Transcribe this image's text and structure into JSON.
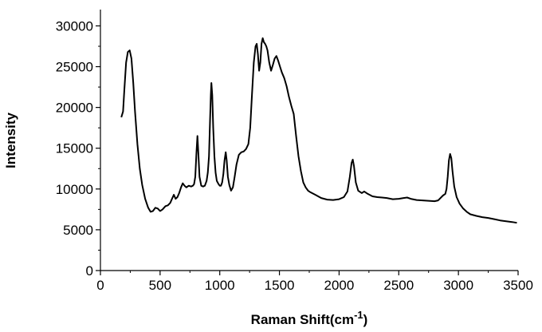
{
  "chart_data": {
    "type": "line",
    "xlabel": "Raman Shift(cm",
    "xlabel_sup": "-1",
    "xlabel_tail": ")",
    "ylabel": "Intensity",
    "xlim": [
      0,
      3500
    ],
    "ylim": [
      0,
      32000
    ],
    "x_ticks": [
      "0",
      "500",
      "1000",
      "1500",
      "2000",
      "2500",
      "3000",
      "3500"
    ],
    "y_ticks": [
      "0",
      "5000",
      "10000",
      "15000",
      "20000",
      "25000",
      "30000"
    ],
    "grid": false,
    "series": [
      {
        "color": "#000000",
        "points": [
          [
            175,
            18800
          ],
          [
            190,
            19500
          ],
          [
            200,
            22000
          ],
          [
            215,
            25500
          ],
          [
            230,
            26800
          ],
          [
            245,
            27000
          ],
          [
            260,
            26000
          ],
          [
            275,
            23000
          ],
          [
            290,
            19500
          ],
          [
            310,
            15500
          ],
          [
            330,
            12500
          ],
          [
            350,
            10500
          ],
          [
            375,
            8800
          ],
          [
            400,
            7700
          ],
          [
            420,
            7200
          ],
          [
            440,
            7300
          ],
          [
            460,
            7700
          ],
          [
            480,
            7600
          ],
          [
            500,
            7300
          ],
          [
            520,
            7500
          ],
          [
            545,
            7900
          ],
          [
            565,
            8000
          ],
          [
            585,
            8300
          ],
          [
            600,
            8800
          ],
          [
            615,
            9300
          ],
          [
            630,
            8800
          ],
          [
            645,
            9000
          ],
          [
            660,
            9500
          ],
          [
            675,
            10200
          ],
          [
            690,
            10700
          ],
          [
            705,
            10400
          ],
          [
            720,
            10200
          ],
          [
            740,
            10400
          ],
          [
            760,
            10300
          ],
          [
            775,
            10400
          ],
          [
            785,
            10600
          ],
          [
            795,
            11500
          ],
          [
            805,
            14500
          ],
          [
            813,
            16500
          ],
          [
            820,
            14500
          ],
          [
            830,
            11500
          ],
          [
            845,
            10400
          ],
          [
            860,
            10300
          ],
          [
            875,
            10400
          ],
          [
            890,
            11000
          ],
          [
            900,
            12000
          ],
          [
            910,
            14000
          ],
          [
            918,
            18000
          ],
          [
            925,
            21500
          ],
          [
            930,
            23000
          ],
          [
            937,
            21500
          ],
          [
            945,
            17500
          ],
          [
            955,
            14000
          ],
          [
            965,
            12000
          ],
          [
            975,
            11000
          ],
          [
            990,
            10600
          ],
          [
            1000,
            10400
          ],
          [
            1010,
            10400
          ],
          [
            1020,
            10800
          ],
          [
            1030,
            11800
          ],
          [
            1040,
            13500
          ],
          [
            1050,
            14500
          ],
          [
            1058,
            13500
          ],
          [
            1068,
            11500
          ],
          [
            1080,
            10500
          ],
          [
            1095,
            9800
          ],
          [
            1110,
            10200
          ],
          [
            1125,
            11500
          ],
          [
            1140,
            13000
          ],
          [
            1160,
            14200
          ],
          [
            1180,
            14500
          ],
          [
            1200,
            14600
          ],
          [
            1220,
            14900
          ],
          [
            1240,
            15500
          ],
          [
            1255,
            17500
          ],
          [
            1270,
            21500
          ],
          [
            1285,
            25500
          ],
          [
            1300,
            27500
          ],
          [
            1310,
            27800
          ],
          [
            1320,
            26500
          ],
          [
            1330,
            24500
          ],
          [
            1340,
            25500
          ],
          [
            1350,
            27800
          ],
          [
            1360,
            28500
          ],
          [
            1370,
            28000
          ],
          [
            1380,
            27800
          ],
          [
            1390,
            27500
          ],
          [
            1400,
            27000
          ],
          [
            1415,
            25500
          ],
          [
            1430,
            24500
          ],
          [
            1445,
            25200
          ],
          [
            1460,
            26000
          ],
          [
            1475,
            26300
          ],
          [
            1490,
            25700
          ],
          [
            1505,
            25000
          ],
          [
            1520,
            24300
          ],
          [
            1540,
            23600
          ],
          [
            1560,
            22600
          ],
          [
            1580,
            21300
          ],
          [
            1600,
            20200
          ],
          [
            1620,
            19200
          ],
          [
            1640,
            16500
          ],
          [
            1660,
            14000
          ],
          [
            1680,
            12200
          ],
          [
            1700,
            10800
          ],
          [
            1720,
            10200
          ],
          [
            1740,
            9800
          ],
          [
            1760,
            9600
          ],
          [
            1800,
            9300
          ],
          [
            1850,
            8900
          ],
          [
            1900,
            8700
          ],
          [
            1950,
            8650
          ],
          [
            2000,
            8750
          ],
          [
            2040,
            9000
          ],
          [
            2070,
            9700
          ],
          [
            2090,
            11500
          ],
          [
            2105,
            13200
          ],
          [
            2115,
            13600
          ],
          [
            2125,
            12800
          ],
          [
            2140,
            10800
          ],
          [
            2160,
            9800
          ],
          [
            2190,
            9500
          ],
          [
            2210,
            9700
          ],
          [
            2240,
            9400
          ],
          [
            2280,
            9100
          ],
          [
            2320,
            9000
          ],
          [
            2360,
            8950
          ],
          [
            2400,
            8900
          ],
          [
            2450,
            8750
          ],
          [
            2500,
            8800
          ],
          [
            2540,
            8900
          ],
          [
            2570,
            8950
          ],
          [
            2600,
            8800
          ],
          [
            2650,
            8650
          ],
          [
            2700,
            8600
          ],
          [
            2750,
            8550
          ],
          [
            2800,
            8500
          ],
          [
            2830,
            8600
          ],
          [
            2850,
            8900
          ],
          [
            2870,
            9200
          ],
          [
            2890,
            9400
          ],
          [
            2900,
            10000
          ],
          [
            2910,
            11500
          ],
          [
            2920,
            13500
          ],
          [
            2930,
            14300
          ],
          [
            2940,
            13800
          ],
          [
            2950,
            12200
          ],
          [
            2965,
            10300
          ],
          [
            2985,
            9000
          ],
          [
            3010,
            8200
          ],
          [
            3040,
            7600
          ],
          [
            3070,
            7200
          ],
          [
            3100,
            6900
          ],
          [
            3150,
            6700
          ],
          [
            3200,
            6550
          ],
          [
            3250,
            6450
          ],
          [
            3300,
            6300
          ],
          [
            3350,
            6150
          ],
          [
            3400,
            6050
          ],
          [
            3450,
            5950
          ],
          [
            3490,
            5850
          ]
        ]
      }
    ]
  }
}
